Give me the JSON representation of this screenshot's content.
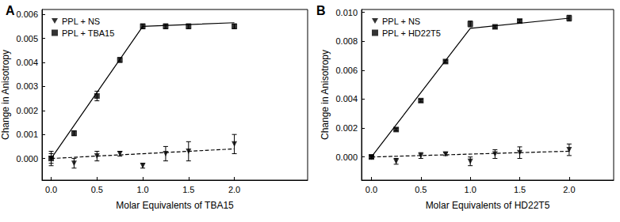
{
  "chart_data": [
    {
      "type": "scatter",
      "title": "A",
      "x_label": "Molar Equivalents of TBA15",
      "y_label": "Change in Anisotropy",
      "xlim": [
        -0.1,
        2.8
      ],
      "xticks": [
        {
          "value": 0,
          "label": "0.0"
        },
        {
          "value": 0.5,
          "label": "0.5"
        },
        {
          "value": 1,
          "label": "1.0"
        },
        {
          "value": 1.5,
          "label": "1.5"
        },
        {
          "value": 2,
          "label": "2.0"
        }
      ],
      "ylim": [
        -0.0009,
        0.0062
      ],
      "yticks": [
        {
          "value": 0,
          "label": "0.000"
        },
        {
          "value": 0.001,
          "label": "0.001"
        },
        {
          "value": 0.002,
          "label": "0.002"
        },
        {
          "value": 0.003,
          "label": "0.003"
        },
        {
          "value": 0.004,
          "label": "0.004"
        },
        {
          "value": 0.005,
          "label": "0.005"
        },
        {
          "value": 0.006,
          "label": "0.006"
        }
      ],
      "grid": false,
      "legend": "upper left",
      "series": [
        {
          "name": "PPL + NS",
          "color": "#000000",
          "marker": "triangle-down",
          "line_style": "dashed",
          "x": [
            0,
            0.25,
            0.5,
            0.75,
            1.0,
            1.25,
            1.5,
            2.0
          ],
          "values": [
            0,
            -0.0002,
            0.0001,
            0.0002,
            -0.0003,
            0.0002,
            0.0003,
            0.0006
          ],
          "errors": [
            0.0003,
            0.0002,
            0.0002,
            0.0001,
            0.0001,
            0.0003,
            0.0004,
            0.0004
          ],
          "fit": {
            "x": [
              0,
              2
            ],
            "values": [
              0,
              0.0004
            ]
          }
        },
        {
          "name": "PPL + TBA15",
          "color": "#000000",
          "marker": "square",
          "line_style": "solid",
          "x": [
            0,
            0.25,
            0.5,
            0.75,
            1.0,
            1.25,
            1.5,
            2.0
          ],
          "values": [
            0,
            0.00105,
            0.0026,
            0.0041,
            0.0055,
            0.0055,
            0.0055,
            0.0055
          ],
          "errors": [
            0.0002,
            0.0001,
            0.0002,
            0.0001,
            0.0001,
            0.0001,
            0.0001,
            0.0001
          ],
          "fit": {
            "x": [
              0,
              1,
              2
            ],
            "values": [
              0,
              0.0055,
              0.00565
            ]
          }
        }
      ]
    },
    {
      "type": "scatter",
      "title": "B",
      "x_label": "Molar Equivalents of HD22T5",
      "y_label": "Change in Anisotropy",
      "xlim": [
        -0.1,
        2.45
      ],
      "xticks": [
        {
          "value": 0,
          "label": "0.0"
        },
        {
          "value": 0.5,
          "label": "0.5"
        },
        {
          "value": 1,
          "label": "1.0"
        },
        {
          "value": 1.5,
          "label": "1.5"
        },
        {
          "value": 2,
          "label": "2.0"
        }
      ],
      "ylim": [
        -0.0016,
        0.0102
      ],
      "yticks": [
        {
          "value": 0,
          "label": "0.000"
        },
        {
          "value": 0.002,
          "label": "0.002"
        },
        {
          "value": 0.004,
          "label": "0.004"
        },
        {
          "value": 0.006,
          "label": "0.006"
        },
        {
          "value": 0.008,
          "label": "0.008"
        },
        {
          "value": 0.01,
          "label": "0.010"
        }
      ],
      "grid": false,
      "legend": "upper left",
      "series": [
        {
          "name": "PPL + NS",
          "color": "#000000",
          "marker": "triangle-down",
          "line_style": "dashed",
          "x": [
            0,
            0.25,
            0.5,
            0.75,
            1.0,
            1.25,
            1.5,
            2.0
          ],
          "values": [
            0,
            -0.0003,
            0.0001,
            0.0002,
            -0.0003,
            0.0002,
            0.0003,
            0.0005
          ],
          "errors": [
            0.0001,
            0.0002,
            0.0002,
            0.0001,
            0.0003,
            0.0003,
            0.0004,
            0.0004
          ],
          "fit": {
            "x": [
              0,
              2
            ],
            "values": [
              0,
              0.0004
            ]
          }
        },
        {
          "name": "PPL + HD22T5",
          "color": "#000000",
          "marker": "square",
          "line_style": "solid",
          "x": [
            0,
            0.25,
            0.5,
            0.75,
            1.0,
            1.25,
            1.5,
            2.0
          ],
          "values": [
            0,
            0.0019,
            0.0039,
            0.0066,
            0.0092,
            0.009,
            0.0094,
            0.0096
          ],
          "errors": [
            0.0001,
            0.0001,
            0.0001,
            0.0001,
            0.0002,
            0.0001,
            0.0001,
            0.0002
          ],
          "fit": {
            "x": [
              0,
              1,
              2
            ],
            "values": [
              0,
              0.0089,
              0.0096
            ]
          }
        }
      ]
    }
  ]
}
